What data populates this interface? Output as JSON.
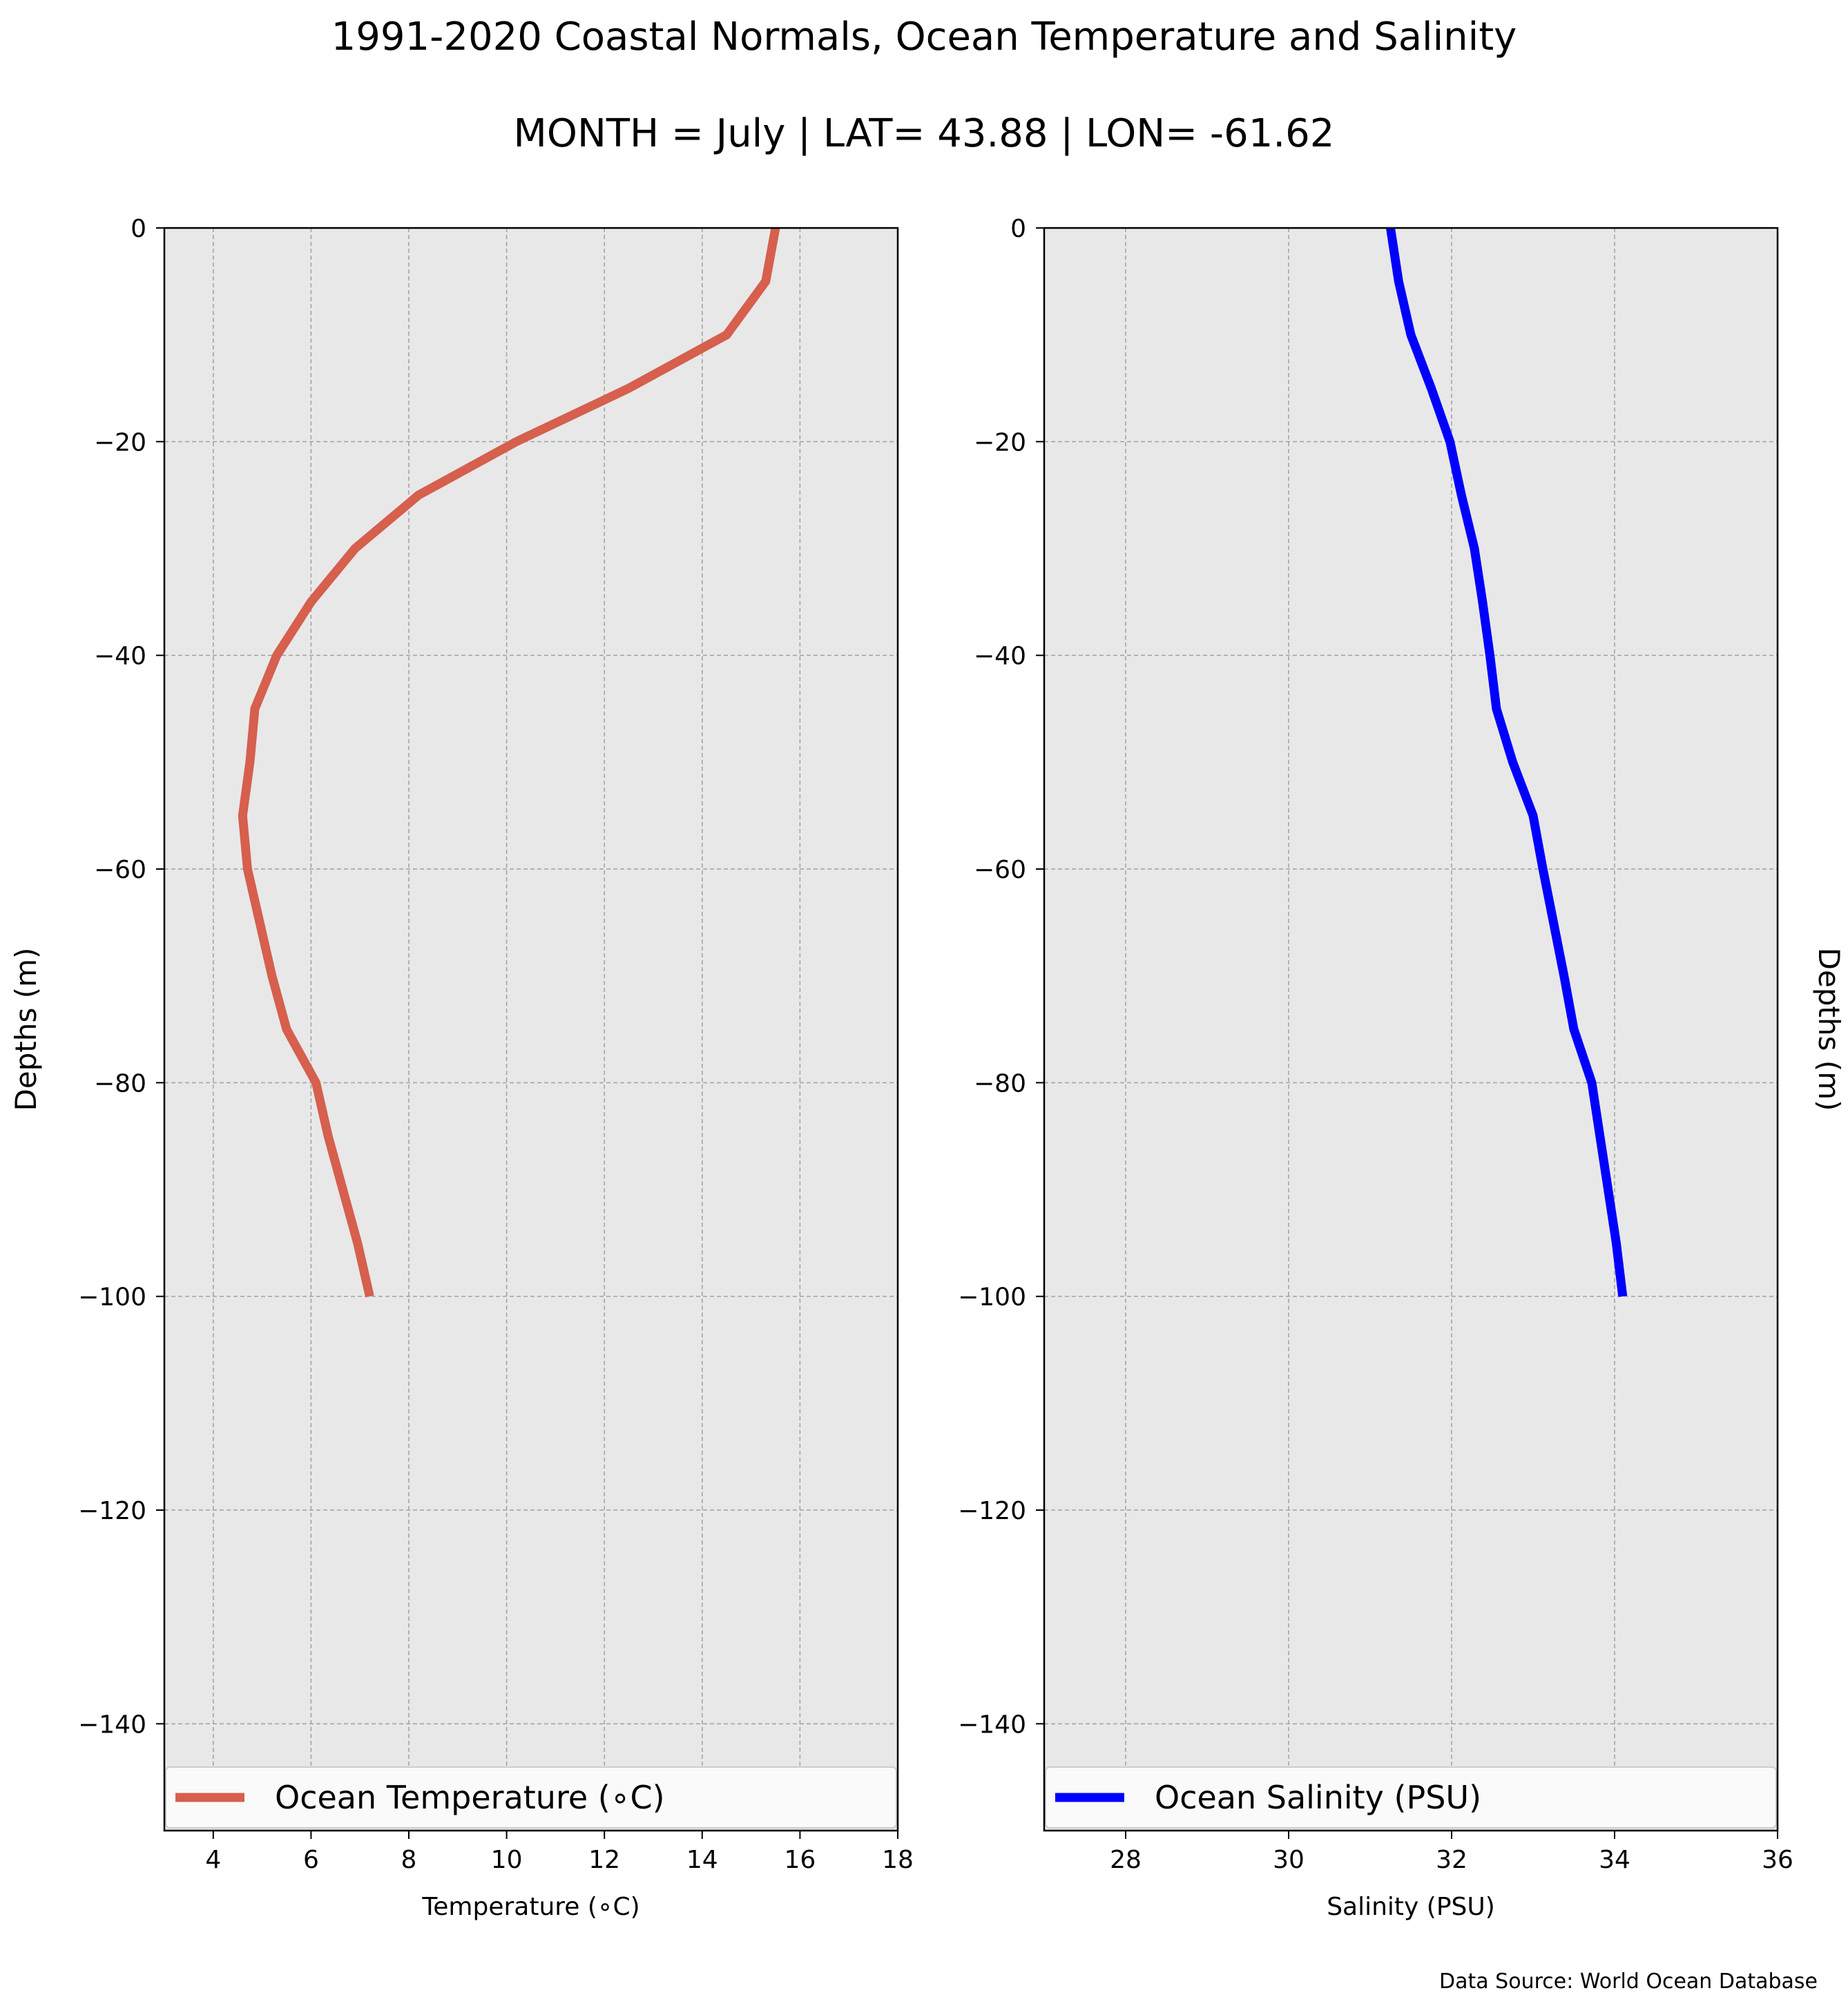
{
  "title": "1991-2020 Coastal Normals, Ocean Temperature and Salinity",
  "subtitle": "MONTH = July | LAT= 43.88 | LON= -61.62",
  "source": "Data Source: World Ocean Database",
  "colors": {
    "background": "#e8e8e8",
    "grid": "#a0a0a0",
    "temperature": "#d65f4e",
    "salinity": "#0000ff"
  },
  "chart_data": [
    {
      "type": "line",
      "xlabel": "Temperature (∘C)",
      "ylabel": "Depths (m)",
      "ylabel_position": "left",
      "xlim": [
        3,
        18
      ],
      "ylim": [
        -150,
        0
      ],
      "xticks": [
        4,
        6,
        8,
        10,
        12,
        14,
        16,
        18
      ],
      "yticks": [
        0,
        -20,
        -40,
        -60,
        -80,
        -100,
        -120,
        -140
      ],
      "grid": true,
      "legend": "bottom",
      "series": [
        {
          "name": "Ocean Temperature (∘C)",
          "color": "#d65f4e",
          "x": [
            15.5,
            15.3,
            14.5,
            12.5,
            10.2,
            8.2,
            6.9,
            6.0,
            5.3,
            4.85,
            4.75,
            4.6,
            4.7,
            4.95,
            5.2,
            5.5,
            6.1,
            6.35,
            6.65,
            6.95,
            7.2
          ],
          "y": [
            0,
            -5,
            -10,
            -15,
            -20,
            -25,
            -30,
            -35,
            -40,
            -45,
            -50,
            -55,
            -60,
            -65,
            -70,
            -75,
            -80,
            -85,
            -90,
            -95,
            -100
          ]
        }
      ]
    },
    {
      "type": "line",
      "xlabel": "Salinity (PSU)",
      "ylabel": "Depths (m)",
      "ylabel_position": "right",
      "xlim": [
        27,
        36
      ],
      "ylim": [
        -150,
        0
      ],
      "xticks": [
        28,
        30,
        32,
        34,
        36
      ],
      "yticks": [
        0,
        -20,
        -40,
        -60,
        -80,
        -100,
        -120,
        -140
      ],
      "grid": true,
      "legend": "bottom",
      "series": [
        {
          "name": "Ocean Salinity (PSU)",
          "color": "#0000ff",
          "x": [
            31.25,
            31.35,
            31.5,
            31.75,
            31.98,
            32.12,
            32.28,
            32.38,
            32.47,
            32.55,
            32.75,
            33.0,
            33.12,
            33.25,
            33.38,
            33.5,
            33.72,
            33.82,
            33.92,
            34.02,
            34.1
          ],
          "y": [
            0,
            -5,
            -10,
            -15,
            -20,
            -25,
            -30,
            -35,
            -40,
            -45,
            -50,
            -55,
            -60,
            -65,
            -70,
            -75,
            -80,
            -85,
            -90,
            -95,
            -100
          ]
        }
      ]
    }
  ]
}
